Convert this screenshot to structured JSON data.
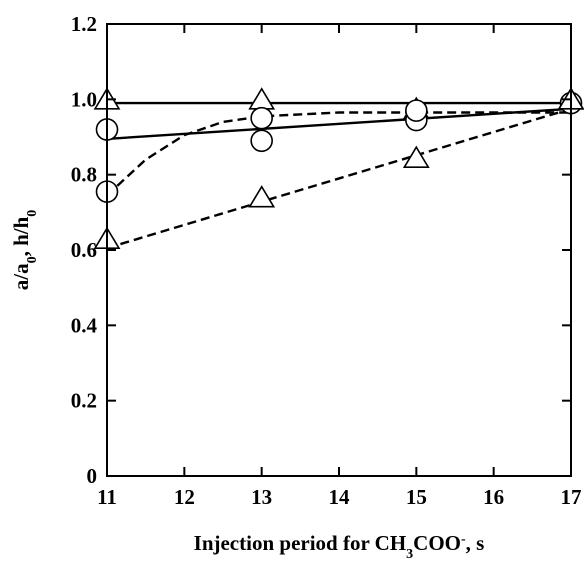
{
  "chart_data": {
    "type": "scatter",
    "title": "",
    "xlabel": {
      "parts": [
        {
          "text": "Injection period for CH"
        },
        {
          "text": "3",
          "shift": "sub"
        },
        {
          "text": "COO"
        },
        {
          "text": "-",
          "shift": "sup"
        },
        {
          "text": ", s"
        }
      ]
    },
    "ylabel": {
      "parts": [
        {
          "text": "a/a"
        },
        {
          "text": "0",
          "shift": "sub"
        },
        {
          "text": ", h/h"
        },
        {
          "text": "0",
          "shift": "sub"
        }
      ]
    },
    "xlim": [
      11,
      17
    ],
    "ylim": [
      0,
      1.2
    ],
    "xticks": [
      11,
      12,
      13,
      14,
      15,
      16,
      17
    ],
    "yticks": [
      0,
      0.2,
      0.4,
      0.6,
      0.8,
      1.0,
      1.2
    ],
    "xtick_labels": [
      "11",
      "12",
      "13",
      "14",
      "15",
      "16",
      "17"
    ],
    "ytick_labels": [
      "0",
      "0.2",
      "0.4",
      "0.6",
      "0.8",
      "1.0",
      "1.2"
    ],
    "grid": false,
    "legend": "none",
    "series": [
      {
        "marker": "triangle",
        "points": [
          [
            11,
            0.995
          ],
          [
            13,
            0.995
          ],
          [
            15,
            0.97
          ],
          [
            17,
            0.995
          ]
        ]
      },
      {
        "marker": "circle",
        "points": [
          [
            11,
            0.92
          ],
          [
            13,
            0.89
          ],
          [
            13,
            0.95
          ],
          [
            15,
            0.945
          ],
          [
            15,
            0.97
          ],
          [
            17,
            0.99
          ]
        ]
      },
      {
        "marker": "circle",
        "points": [
          [
            11,
            0.755
          ]
        ]
      },
      {
        "marker": "triangle",
        "points": [
          [
            11,
            0.625
          ],
          [
            13,
            0.735
          ],
          [
            15,
            0.84
          ],
          [
            17,
            0.995
          ]
        ]
      }
    ],
    "lines": [
      {
        "style": "solid",
        "points": [
          [
            11,
            0.99
          ],
          [
            17,
            0.99
          ]
        ]
      },
      {
        "style": "solid",
        "points": [
          [
            11,
            0.895
          ],
          [
            17,
            0.975
          ]
        ]
      },
      {
        "style": "dashed",
        "points": [
          [
            11,
            0.745
          ],
          [
            11.5,
            0.84
          ],
          [
            12,
            0.905
          ],
          [
            12.5,
            0.94
          ],
          [
            13,
            0.955
          ],
          [
            14,
            0.965
          ],
          [
            15,
            0.965
          ],
          [
            16,
            0.965
          ],
          [
            17,
            0.965
          ]
        ]
      },
      {
        "style": "dashed",
        "points": [
          [
            11,
            0.605
          ],
          [
            17,
            0.975
          ]
        ]
      }
    ]
  }
}
